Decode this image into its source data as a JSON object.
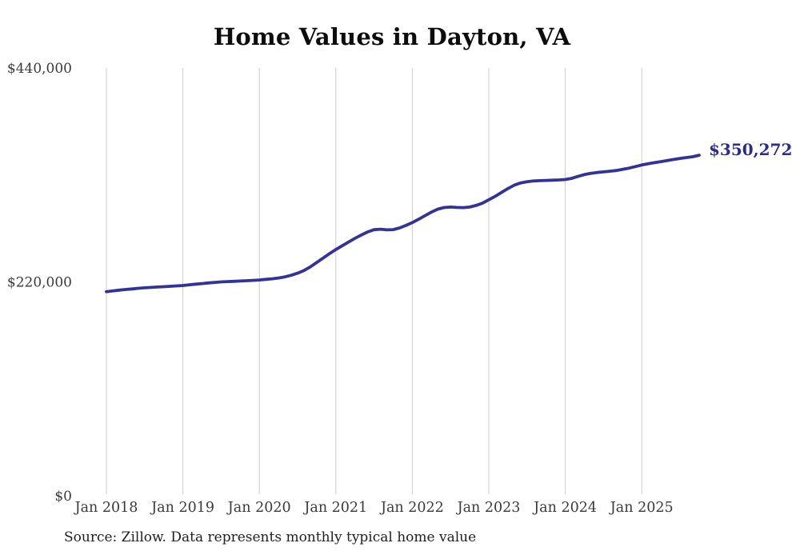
{
  "page": {
    "title": "Home Values in Dayton, VA",
    "source_note": "Source: Zillow. Data represents monthly typical home value"
  },
  "chart_data": {
    "type": "line",
    "title": "Home Values in Dayton, VA",
    "xlabel": "",
    "ylabel": "",
    "x_range": [
      "2018-01",
      "2025-10"
    ],
    "ylim": [
      0,
      440000
    ],
    "grid": "vertical-only",
    "legend": "none",
    "x_tick_labels": [
      "Jan 2018",
      "Jan 2019",
      "Jan 2020",
      "Jan 2021",
      "Jan 2022",
      "Jan 2023",
      "Jan 2024",
      "Jan 2025"
    ],
    "y_ticks": [
      {
        "label": "$440,000",
        "value": 440000
      },
      {
        "label": "$220,000",
        "value": 220000
      },
      {
        "label": "$0",
        "value": 0
      }
    ],
    "end_label": "$350,272",
    "end_value": 350272,
    "colors": {
      "line": "#32329B",
      "end_label": "#2B2B8F",
      "gridline": "#CCCCCC",
      "title": "#0D0D0D",
      "axis_text": "#3A3A3A",
      "source_text": "#1F1F1F",
      "background": "#FFFFFF"
    },
    "series": [
      {
        "name": "Monthly typical home value",
        "start": "2018-01",
        "interval": "month",
        "values": [
          210000,
          210800,
          211500,
          212200,
          212800,
          213400,
          213900,
          214300,
          214700,
          215100,
          215500,
          215900,
          216300,
          217000,
          217700,
          218300,
          218900,
          219500,
          220000,
          220300,
          220600,
          220900,
          221200,
          221600,
          222000,
          222600,
          223200,
          224000,
          225200,
          226800,
          229000,
          231800,
          235500,
          240000,
          244500,
          249000,
          253300,
          257200,
          261000,
          264800,
          268300,
          271400,
          273700,
          274200,
          273500,
          273800,
          275500,
          278100,
          281000,
          284500,
          288200,
          291800,
          294800,
          296500,
          297000,
          296600,
          296400,
          297000,
          298600,
          300900,
          304500,
          308000,
          312000,
          316000,
          319500,
          321800,
          323000,
          323800,
          324100,
          324400,
          324600,
          324900,
          325300,
          326500,
          328500,
          330400,
          331700,
          332500,
          333200,
          333800,
          334600,
          335700,
          337000,
          338600,
          340200,
          341500,
          342600,
          343700,
          344800,
          345900,
          347000,
          347900,
          348700,
          350272
        ]
      }
    ]
  }
}
